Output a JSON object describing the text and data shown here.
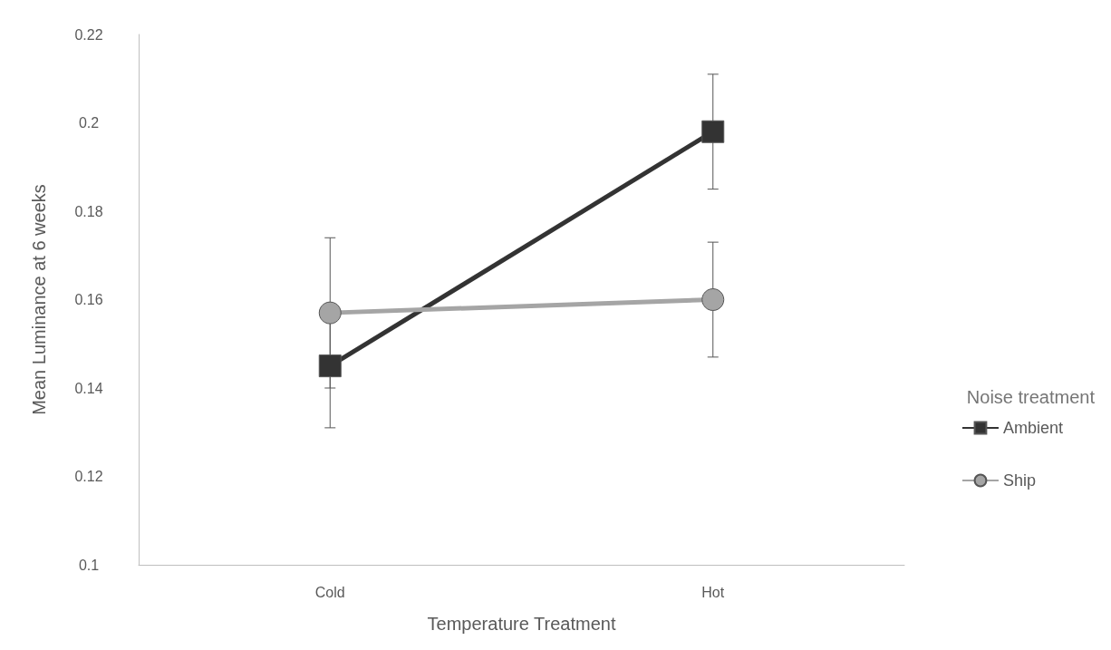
{
  "chart_data": {
    "type": "line",
    "xlabel": "Temperature Treatment",
    "ylabel": "Mean Luminance at 6 weeks",
    "legend_title": "Noise treatment",
    "categories": [
      "Cold",
      "Hot"
    ],
    "series": [
      {
        "name": "Ambient",
        "color": "#333333",
        "marker": "square",
        "values": [
          0.145,
          0.198
        ],
        "errors": [
          0.014,
          0.013
        ]
      },
      {
        "name": "Ship",
        "color": "#a5a5a5",
        "marker": "circle",
        "values": [
          0.157,
          0.16
        ],
        "errors": [
          0.017,
          0.013
        ]
      }
    ],
    "ylim": [
      0.1,
      0.22
    ],
    "yticks": [
      0.1,
      0.12,
      0.14,
      0.16,
      0.18,
      0.2,
      0.22
    ],
    "grid": false,
    "legend": "right",
    "line_style": "solid"
  }
}
